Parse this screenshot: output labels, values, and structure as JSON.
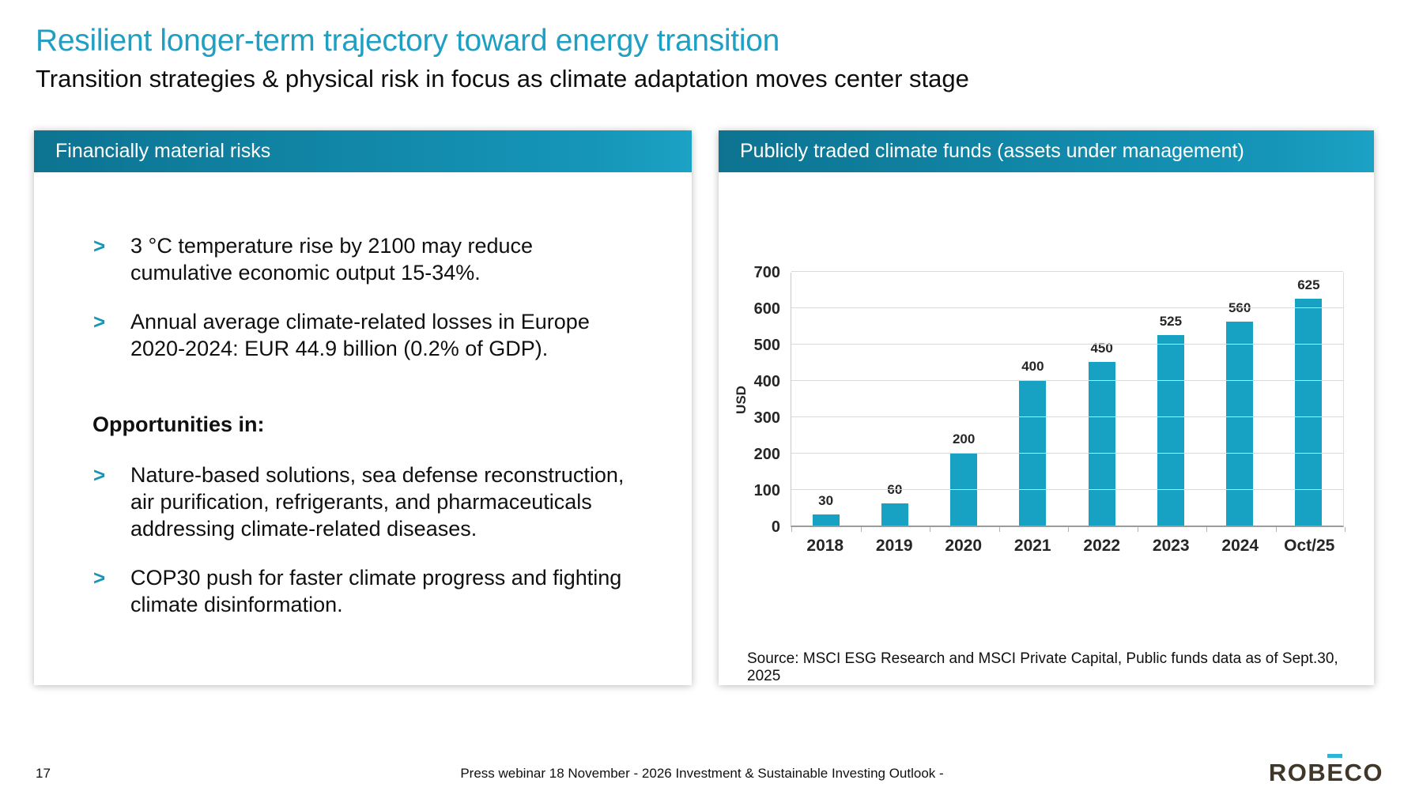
{
  "slide": {
    "title": "Resilient longer-term trajectory toward energy transition",
    "subtitle": "Transition strategies & physical risk in focus as climate adaptation moves center stage"
  },
  "left_panel": {
    "header": "Financially material risks",
    "bullet_marker": ">",
    "risk_bullets": [
      "3 °C temperature rise by 2100 may reduce cumulative economic output 15-34%.",
      "Annual average climate-related losses in Europe 2020-2024: EUR 44.9 billion (0.2% of GDP)."
    ],
    "opportunities_heading": "Opportunities in:",
    "opportunity_bullets": [
      "Nature-based solutions, sea defense reconstruction, air purification, refrigerants, and pharmaceuticals addressing climate-related diseases.",
      "COP30 push for faster climate progress and fighting climate disinformation."
    ]
  },
  "right_panel": {
    "header": "Publicly traded climate funds (assets under management)",
    "source": "Source: MSCI ESG Research and MSCI Private Capital, Public funds data as of Sept.30, 2025"
  },
  "chart_data": {
    "type": "bar",
    "title": "Publicly traded climate funds (assets under management)",
    "categories": [
      "2018",
      "2019",
      "2020",
      "2021",
      "2022",
      "2023",
      "2024",
      "Oct/25"
    ],
    "values": [
      30,
      60,
      200,
      400,
      450,
      525,
      560,
      625
    ],
    "xlabel": "",
    "ylabel": "USD",
    "ylim": [
      0,
      700
    ],
    "ytick_step": 100,
    "grid": true,
    "legend": "none",
    "bar_color": "#17a2c3"
  },
  "footer": {
    "page_number": "17",
    "center_text": "Press webinar 18 November - 2026 Investment & Sustainable Investing Outlook -",
    "logo_part1": "ROB",
    "logo_part2": "E",
    "logo_part3": "CO"
  },
  "colors": {
    "title_teal": "#1e9fc4",
    "header_gradient_start": "#0d7391",
    "header_gradient_end": "#1ba2c4",
    "bullet_marker_teal": "#1795b5",
    "bar_teal": "#17a2c3",
    "gridline_gray": "#d9d9d9",
    "logo_brown": "#40362a",
    "logo_accent_cyan": "#2fb4d9"
  }
}
